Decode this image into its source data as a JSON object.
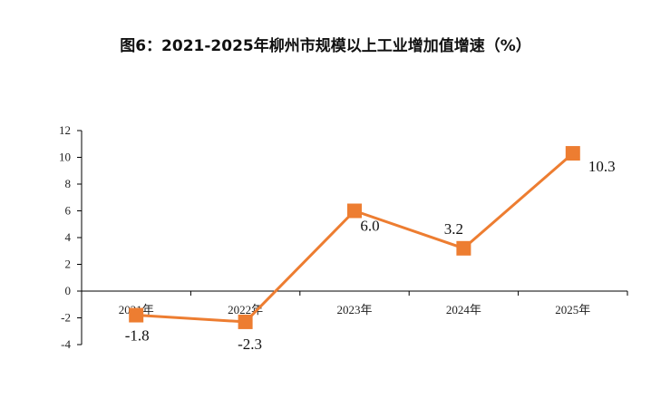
{
  "chart_data": {
    "type": "line",
    "title": "图6：2021-2025年柳州市规模以上工业增加值增速（%）",
    "xlabel": "",
    "ylabel": "",
    "categories": [
      "2021年",
      "2022年",
      "2023年",
      "2024年",
      "2025年"
    ],
    "series": [
      {
        "values": [
          -1.8,
          -2.3,
          6.0,
          3.2,
          10.3
        ],
        "data_labels": [
          "-1.8",
          "-2.3",
          "6.0",
          "3.2",
          "10.3"
        ]
      }
    ],
    "ylim": [
      -4,
      12
    ],
    "yticks": [
      "-4",
      "-2",
      "0",
      "2",
      "4",
      "6",
      "8",
      "10",
      "12"
    ],
    "grid": false,
    "legend": "none",
    "colors": {
      "series": "#ED7D31",
      "axis": "#000000"
    }
  }
}
